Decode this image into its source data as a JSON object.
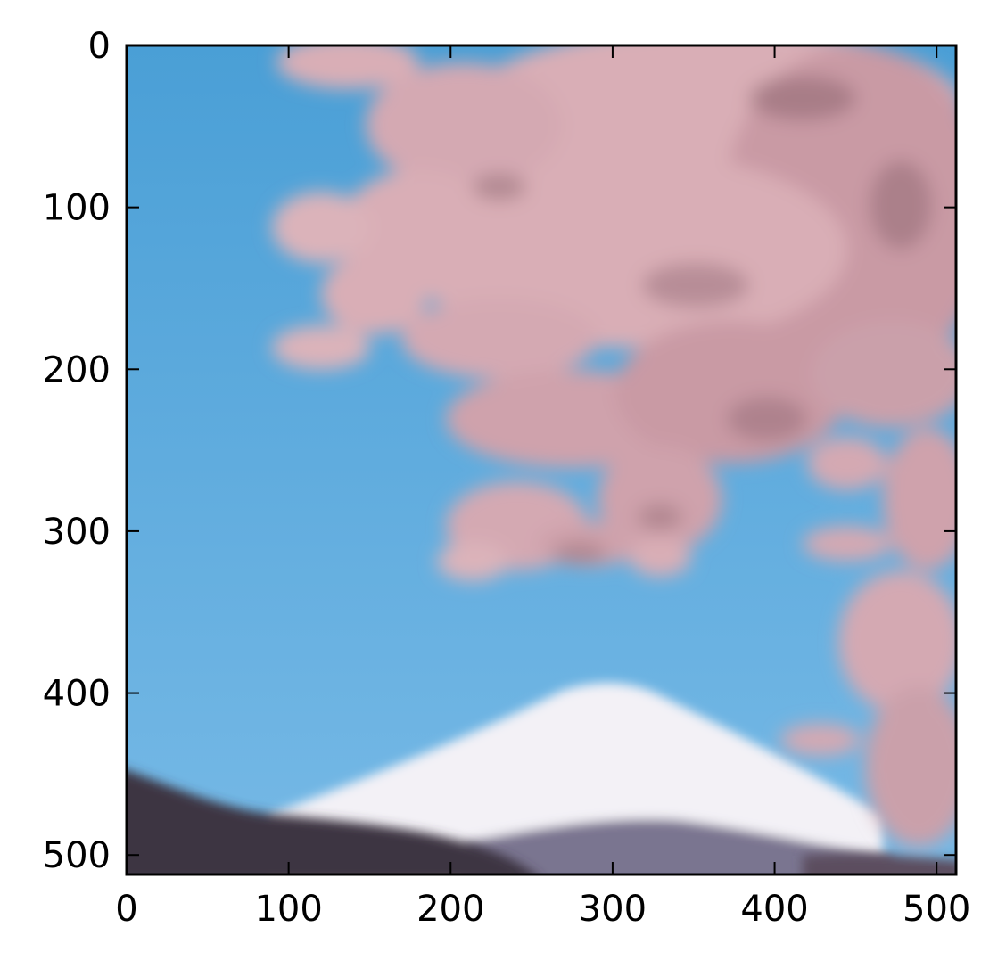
{
  "figure": {
    "type": "image-display",
    "subject": "photo",
    "x_ticks": [
      "0",
      "100",
      "200",
      "300",
      "400",
      "500"
    ],
    "y_ticks": [
      "0",
      "100",
      "200",
      "300",
      "400",
      "500"
    ],
    "xlim": [
      0,
      512
    ],
    "ylim": [
      512,
      0
    ],
    "colors": {
      "sky_top": "#4a9fd6",
      "sky_bottom": "#76b9e6",
      "blossom": "#d9aeb6",
      "blossom_dark": "#8d6670",
      "snow": "#f3f1f6",
      "mountain": "#7a7590",
      "foreground": "#3d3442"
    }
  }
}
